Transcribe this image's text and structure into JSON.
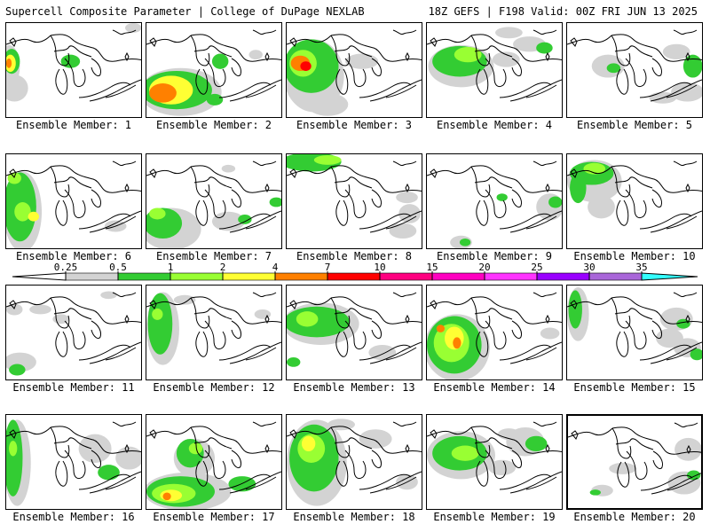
{
  "header": {
    "left": "Supercell Composite Parameter | College of DuPage NEXLAB",
    "right": "18Z GEFS | F198 Valid: 00Z FRI JUN 13 2025"
  },
  "colors": {
    "c0": "#d3d3d3",
    "c1": "#33cc33",
    "c2": "#99ff33",
    "c3": "#ffff33",
    "c4": "#ff8000",
    "c5": "#ff0000",
    "c6": "#ff0080",
    "c7": "#ff00c0",
    "c8": "#ff33ff",
    "c9": "#9900ff",
    "c10": "#a966d9",
    "c11": "#33ffff"
  },
  "colorbar": {
    "ticks": [
      "0.25",
      "0.5",
      "1",
      "2",
      "4",
      "7",
      "10",
      "15",
      "20",
      "25",
      "30",
      "35"
    ]
  },
  "members": [
    {
      "label": "Ensemble Member: 1",
      "selected": false,
      "blobs": [
        [
          0.02,
          0.45,
          0.08,
          0.22,
          0
        ],
        [
          0.06,
          0.68,
          0.1,
          0.14,
          0
        ],
        [
          0.04,
          0.4,
          0.06,
          0.13,
          1
        ],
        [
          0.03,
          0.42,
          0.04,
          0.09,
          3
        ],
        [
          0.02,
          0.42,
          0.02,
          0.05,
          4
        ],
        [
          0.93,
          0.05,
          0.06,
          0.05,
          0
        ],
        [
          0.47,
          0.4,
          0.07,
          0.07,
          1
        ]
      ]
    },
    {
      "label": "Ensemble Member: 2",
      "selected": false,
      "blobs": [
        [
          0.25,
          0.72,
          0.3,
          0.25,
          0
        ],
        [
          0.22,
          0.7,
          0.26,
          0.2,
          1
        ],
        [
          0.18,
          0.7,
          0.16,
          0.15,
          3
        ],
        [
          0.12,
          0.73,
          0.1,
          0.1,
          4
        ],
        [
          0.54,
          0.4,
          0.06,
          0.08,
          1
        ],
        [
          0.8,
          0.33,
          0.05,
          0.05,
          0
        ],
        [
          0.5,
          0.8,
          0.06,
          0.06,
          1
        ]
      ]
    },
    {
      "label": "Ensemble Member: 3",
      "selected": false,
      "blobs": [
        [
          0.2,
          0.55,
          0.22,
          0.38,
          0
        ],
        [
          0.18,
          0.45,
          0.2,
          0.28,
          1
        ],
        [
          0.12,
          0.42,
          0.1,
          0.14,
          2
        ],
        [
          0.1,
          0.42,
          0.07,
          0.08,
          4
        ],
        [
          0.14,
          0.45,
          0.04,
          0.05,
          5
        ],
        [
          0.55,
          0.4,
          0.12,
          0.08,
          0
        ],
        [
          0.3,
          0.85,
          0.15,
          0.12,
          0
        ]
      ]
    },
    {
      "label": "Ensemble Member: 4",
      "selected": false,
      "blobs": [
        [
          0.25,
          0.45,
          0.24,
          0.22,
          0
        ],
        [
          0.24,
          0.4,
          0.2,
          0.16,
          1
        ],
        [
          0.3,
          0.33,
          0.1,
          0.08,
          2
        ],
        [
          0.58,
          0.38,
          0.1,
          0.08,
          0
        ],
        [
          0.75,
          0.22,
          0.12,
          0.08,
          0
        ],
        [
          0.86,
          0.26,
          0.06,
          0.06,
          1
        ],
        [
          0.6,
          0.1,
          0.1,
          0.06,
          0
        ]
      ]
    },
    {
      "label": "Ensemble Member: 5",
      "selected": false,
      "blobs": [
        [
          0.3,
          0.45,
          0.12,
          0.12,
          0
        ],
        [
          0.34,
          0.47,
          0.05,
          0.05,
          1
        ],
        [
          0.92,
          0.45,
          0.07,
          0.12,
          1
        ],
        [
          0.88,
          0.72,
          0.12,
          0.1,
          0
        ],
        [
          0.7,
          0.78,
          0.1,
          0.06,
          0
        ],
        [
          0.8,
          0.3,
          0.1,
          0.08,
          0
        ]
      ]
    },
    {
      "label": "Ensemble Member: 6",
      "selected": false,
      "blobs": [
        [
          0.12,
          0.6,
          0.14,
          0.42,
          0
        ],
        [
          0.1,
          0.55,
          0.12,
          0.36,
          1
        ],
        [
          0.12,
          0.6,
          0.06,
          0.1,
          2
        ],
        [
          0.2,
          0.65,
          0.04,
          0.05,
          3
        ],
        [
          0.06,
          0.25,
          0.05,
          0.06,
          2
        ],
        [
          0.8,
          0.75,
          0.08,
          0.06,
          0
        ]
      ]
    },
    {
      "label": "Ensemble Member: 7",
      "selected": false,
      "blobs": [
        [
          0.18,
          0.78,
          0.22,
          0.22,
          0
        ],
        [
          0.12,
          0.72,
          0.14,
          0.16,
          1
        ],
        [
          0.08,
          0.62,
          0.06,
          0.06,
          2
        ],
        [
          0.6,
          0.7,
          0.12,
          0.1,
          0
        ],
        [
          0.72,
          0.68,
          0.05,
          0.05,
          1
        ],
        [
          0.95,
          0.5,
          0.05,
          0.05,
          1
        ],
        [
          0.6,
          0.15,
          0.05,
          0.04,
          0
        ]
      ]
    },
    {
      "label": "Ensemble Member: 8",
      "selected": false,
      "blobs": [
        [
          0.18,
          0.08,
          0.22,
          0.1,
          1
        ],
        [
          0.3,
          0.06,
          0.1,
          0.05,
          2
        ],
        [
          0.9,
          0.62,
          0.08,
          0.1,
          0
        ],
        [
          0.85,
          0.8,
          0.1,
          0.08,
          0
        ],
        [
          0.88,
          0.45,
          0.08,
          0.06,
          0
        ]
      ]
    },
    {
      "label": "Ensemble Member: 9",
      "selected": false,
      "blobs": [
        [
          0.9,
          0.55,
          0.1,
          0.14,
          0
        ],
        [
          0.94,
          0.5,
          0.05,
          0.06,
          1
        ],
        [
          0.25,
          0.92,
          0.08,
          0.07,
          0
        ],
        [
          0.28,
          0.92,
          0.04,
          0.04,
          1
        ],
        [
          0.55,
          0.45,
          0.04,
          0.04,
          1
        ]
      ]
    },
    {
      "label": "Ensemble Member: 10",
      "selected": false,
      "blobs": [
        [
          0.2,
          0.28,
          0.2,
          0.22,
          0
        ],
        [
          0.18,
          0.2,
          0.16,
          0.12,
          1
        ],
        [
          0.2,
          0.15,
          0.08,
          0.06,
          2
        ],
        [
          0.08,
          0.35,
          0.06,
          0.16,
          1
        ],
        [
          0.25,
          0.55,
          0.1,
          0.12,
          0
        ]
      ]
    },
    {
      "label": "Ensemble Member: 11",
      "selected": false,
      "blobs": [
        [
          0.1,
          0.8,
          0.12,
          0.1,
          0
        ],
        [
          0.08,
          0.88,
          0.06,
          0.06,
          1
        ],
        [
          0.06,
          0.25,
          0.06,
          0.06,
          0
        ],
        [
          0.25,
          0.25,
          0.08,
          0.05,
          0
        ],
        [
          0.4,
          0.35,
          0.06,
          0.05,
          0
        ],
        [
          0.75,
          0.1,
          0.06,
          0.04,
          0
        ]
      ]
    },
    {
      "label": "Ensemble Member: 12",
      "selected": false,
      "blobs": [
        [
          0.12,
          0.45,
          0.12,
          0.38,
          0
        ],
        [
          0.1,
          0.4,
          0.09,
          0.32,
          1
        ],
        [
          0.08,
          0.3,
          0.04,
          0.06,
          2
        ],
        [
          0.28,
          0.15,
          0.08,
          0.05,
          0
        ],
        [
          0.85,
          0.3,
          0.06,
          0.05,
          0
        ]
      ]
    },
    {
      "label": "Ensemble Member: 13",
      "selected": false,
      "blobs": [
        [
          0.25,
          0.4,
          0.28,
          0.22,
          0
        ],
        [
          0.22,
          0.38,
          0.24,
          0.16,
          1
        ],
        [
          0.15,
          0.35,
          0.08,
          0.08,
          2
        ],
        [
          0.7,
          0.7,
          0.1,
          0.08,
          0
        ],
        [
          0.05,
          0.8,
          0.05,
          0.05,
          1
        ]
      ]
    },
    {
      "label": "Ensemble Member: 14",
      "selected": false,
      "blobs": [
        [
          0.22,
          0.65,
          0.24,
          0.35,
          0
        ],
        [
          0.2,
          0.62,
          0.2,
          0.3,
          1
        ],
        [
          0.18,
          0.6,
          0.13,
          0.2,
          2
        ],
        [
          0.2,
          0.55,
          0.07,
          0.12,
          3
        ],
        [
          0.22,
          0.6,
          0.03,
          0.06,
          4
        ],
        [
          0.1,
          0.45,
          0.03,
          0.04,
          4
        ],
        [
          0.9,
          0.5,
          0.07,
          0.06,
          0
        ]
      ]
    },
    {
      "label": "Ensemble Member: 15",
      "selected": false,
      "blobs": [
        [
          0.08,
          0.3,
          0.08,
          0.28,
          0
        ],
        [
          0.06,
          0.25,
          0.05,
          0.2,
          1
        ],
        [
          0.8,
          0.35,
          0.12,
          0.12,
          0
        ],
        [
          0.75,
          0.55,
          0.1,
          0.1,
          0
        ],
        [
          0.88,
          0.65,
          0.1,
          0.1,
          0
        ],
        [
          0.85,
          0.4,
          0.05,
          0.05,
          1
        ],
        [
          0.95,
          0.72,
          0.05,
          0.06,
          1
        ]
      ]
    },
    {
      "label": "Ensemble Member: 16",
      "selected": false,
      "blobs": [
        [
          0.08,
          0.5,
          0.1,
          0.45,
          0
        ],
        [
          0.05,
          0.45,
          0.07,
          0.4,
          1
        ],
        [
          0.05,
          0.35,
          0.03,
          0.08,
          2
        ],
        [
          0.65,
          0.35,
          0.12,
          0.15,
          0
        ],
        [
          0.9,
          0.45,
          0.1,
          0.12,
          0
        ],
        [
          0.75,
          0.6,
          0.08,
          0.08,
          1
        ]
      ]
    },
    {
      "label": "Ensemble Member: 17",
      "selected": false,
      "blobs": [
        [
          0.3,
          0.8,
          0.32,
          0.2,
          0
        ],
        [
          0.25,
          0.8,
          0.25,
          0.16,
          1
        ],
        [
          0.2,
          0.82,
          0.16,
          0.1,
          2
        ],
        [
          0.18,
          0.84,
          0.08,
          0.06,
          3
        ],
        [
          0.15,
          0.85,
          0.03,
          0.04,
          4
        ],
        [
          0.35,
          0.45,
          0.15,
          0.2,
          0
        ],
        [
          0.32,
          0.4,
          0.1,
          0.15,
          1
        ],
        [
          0.36,
          0.35,
          0.05,
          0.06,
          2
        ],
        [
          0.7,
          0.72,
          0.1,
          0.08,
          1
        ]
      ]
    },
    {
      "label": "Ensemble Member: 18",
      "selected": false,
      "blobs": [
        [
          0.22,
          0.5,
          0.22,
          0.45,
          0
        ],
        [
          0.2,
          0.45,
          0.18,
          0.35,
          1
        ],
        [
          0.18,
          0.35,
          0.1,
          0.15,
          2
        ],
        [
          0.16,
          0.3,
          0.05,
          0.08,
          3
        ],
        [
          0.65,
          0.25,
          0.12,
          0.1,
          0
        ],
        [
          0.4,
          0.1,
          0.1,
          0.06,
          0
        ],
        [
          0.88,
          0.7,
          0.08,
          0.08,
          0
        ]
      ]
    },
    {
      "label": "Ensemble Member: 19",
      "selected": false,
      "blobs": [
        [
          0.25,
          0.42,
          0.25,
          0.25,
          0
        ],
        [
          0.24,
          0.4,
          0.2,
          0.18,
          1
        ],
        [
          0.28,
          0.4,
          0.1,
          0.08,
          2
        ],
        [
          0.72,
          0.28,
          0.14,
          0.15,
          0
        ],
        [
          0.8,
          0.3,
          0.08,
          0.08,
          1
        ],
        [
          0.55,
          0.55,
          0.1,
          0.08,
          0
        ],
        [
          0.6,
          0.2,
          0.08,
          0.06,
          0
        ]
      ]
    },
    {
      "label": "Ensemble Member: 20",
      "selected": true,
      "blobs": [
        [
          0.4,
          0.55,
          0.1,
          0.06,
          0
        ],
        [
          0.88,
          0.35,
          0.1,
          0.12,
          0
        ],
        [
          0.85,
          0.7,
          0.12,
          0.12,
          0
        ],
        [
          0.92,
          0.62,
          0.05,
          0.05,
          1
        ],
        [
          0.25,
          0.78,
          0.08,
          0.06,
          0
        ],
        [
          0.2,
          0.8,
          0.04,
          0.03,
          1
        ]
      ]
    }
  ]
}
